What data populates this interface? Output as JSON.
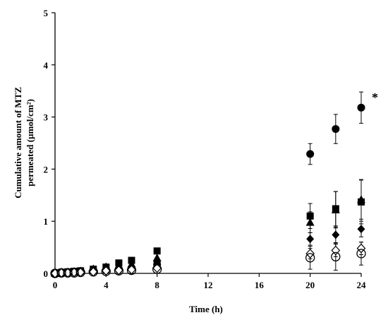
{
  "chart_data": {
    "type": "scatter",
    "xlabel": "Time (h)",
    "ylabel_line1": "Cumulative amount of MTZ",
    "ylabel_line2": "permeated (µmol/cm²)",
    "xlim": [
      0,
      24
    ],
    "ylim": [
      0,
      5
    ],
    "x_ticks": [
      "0",
      "4",
      "8",
      "12",
      "16",
      "20",
      "24"
    ],
    "y_ticks": [
      "0",
      "1",
      "2",
      "3",
      "4",
      "5"
    ],
    "grid": false,
    "legend": "none",
    "annotation": "*",
    "series": [
      {
        "marker": "filled-circle",
        "x": [
          0,
          0.5,
          1,
          1.5,
          2,
          3,
          4,
          5,
          6,
          8,
          20,
          22,
          24
        ],
        "y": [
          0,
          0.01,
          0.02,
          0.02,
          0.03,
          0.04,
          0.06,
          0.08,
          0.1,
          0.17,
          2.29,
          2.77,
          3.18
        ],
        "err": [
          0,
          0,
          0,
          0,
          0,
          0,
          0,
          0,
          0,
          0,
          0.2,
          0.28,
          0.3
        ]
      },
      {
        "marker": "filled-square",
        "x": [
          0,
          0.5,
          1,
          1.5,
          2,
          3,
          4,
          5,
          6,
          8,
          20,
          22,
          24
        ],
        "y": [
          0,
          0.02,
          0.03,
          0.04,
          0.05,
          0.08,
          0.12,
          0.2,
          0.25,
          0.43,
          1.1,
          1.24,
          1.37
        ],
        "err": [
          0,
          0,
          0,
          0,
          0,
          0,
          0,
          0,
          0,
          0,
          0.24,
          0.33,
          0.42
        ]
      },
      {
        "marker": "filled-triangle",
        "x": [
          0,
          0.5,
          1,
          1.5,
          2,
          3,
          4,
          5,
          6,
          8,
          20,
          22,
          24
        ],
        "y": [
          0,
          0.02,
          0.03,
          0.04,
          0.05,
          0.09,
          0.13,
          0.15,
          0.18,
          0.3,
          0.98,
          1.22,
          1.42
        ],
        "err": [
          0,
          0,
          0,
          0,
          0,
          0,
          0,
          0,
          0,
          0,
          0.2,
          0.35,
          0.38
        ]
      },
      {
        "marker": "filled-diamond",
        "x": [
          0,
          0.5,
          1,
          1.5,
          2,
          3,
          4,
          5,
          6,
          8,
          20,
          22,
          24
        ],
        "y": [
          0,
          0.01,
          0.02,
          0.03,
          0.04,
          0.06,
          0.09,
          0.11,
          0.13,
          0.22,
          0.66,
          0.74,
          0.85
        ],
        "err": [
          0,
          0,
          0,
          0,
          0,
          0,
          0,
          0,
          0,
          0,
          0.12,
          0.15,
          0.15
        ]
      },
      {
        "marker": "open-diamond",
        "x": [
          0,
          0.5,
          1,
          1.5,
          2,
          3,
          4,
          5,
          6,
          8,
          20,
          22,
          24
        ],
        "y": [
          0,
          0.01,
          0.01,
          0.02,
          0.02,
          0.03,
          0.05,
          0.06,
          0.07,
          0.1,
          0.38,
          0.44,
          0.48
        ],
        "err": [
          0,
          0,
          0,
          0,
          0,
          0,
          0,
          0,
          0,
          0,
          0.1,
          0.12,
          0.12
        ]
      },
      {
        "marker": "open-circle",
        "x": [
          0,
          0.5,
          1,
          1.5,
          2,
          3,
          4,
          5,
          6,
          8,
          20,
          22,
          24
        ],
        "y": [
          0,
          0.01,
          0.01,
          0.01,
          0.02,
          0.03,
          0.04,
          0.05,
          0.06,
          0.08,
          0.3,
          0.32,
          0.38
        ],
        "err": [
          0,
          0,
          0,
          0,
          0,
          0,
          0,
          0,
          0,
          0,
          0.22,
          0.26,
          0.22
        ]
      }
    ]
  }
}
